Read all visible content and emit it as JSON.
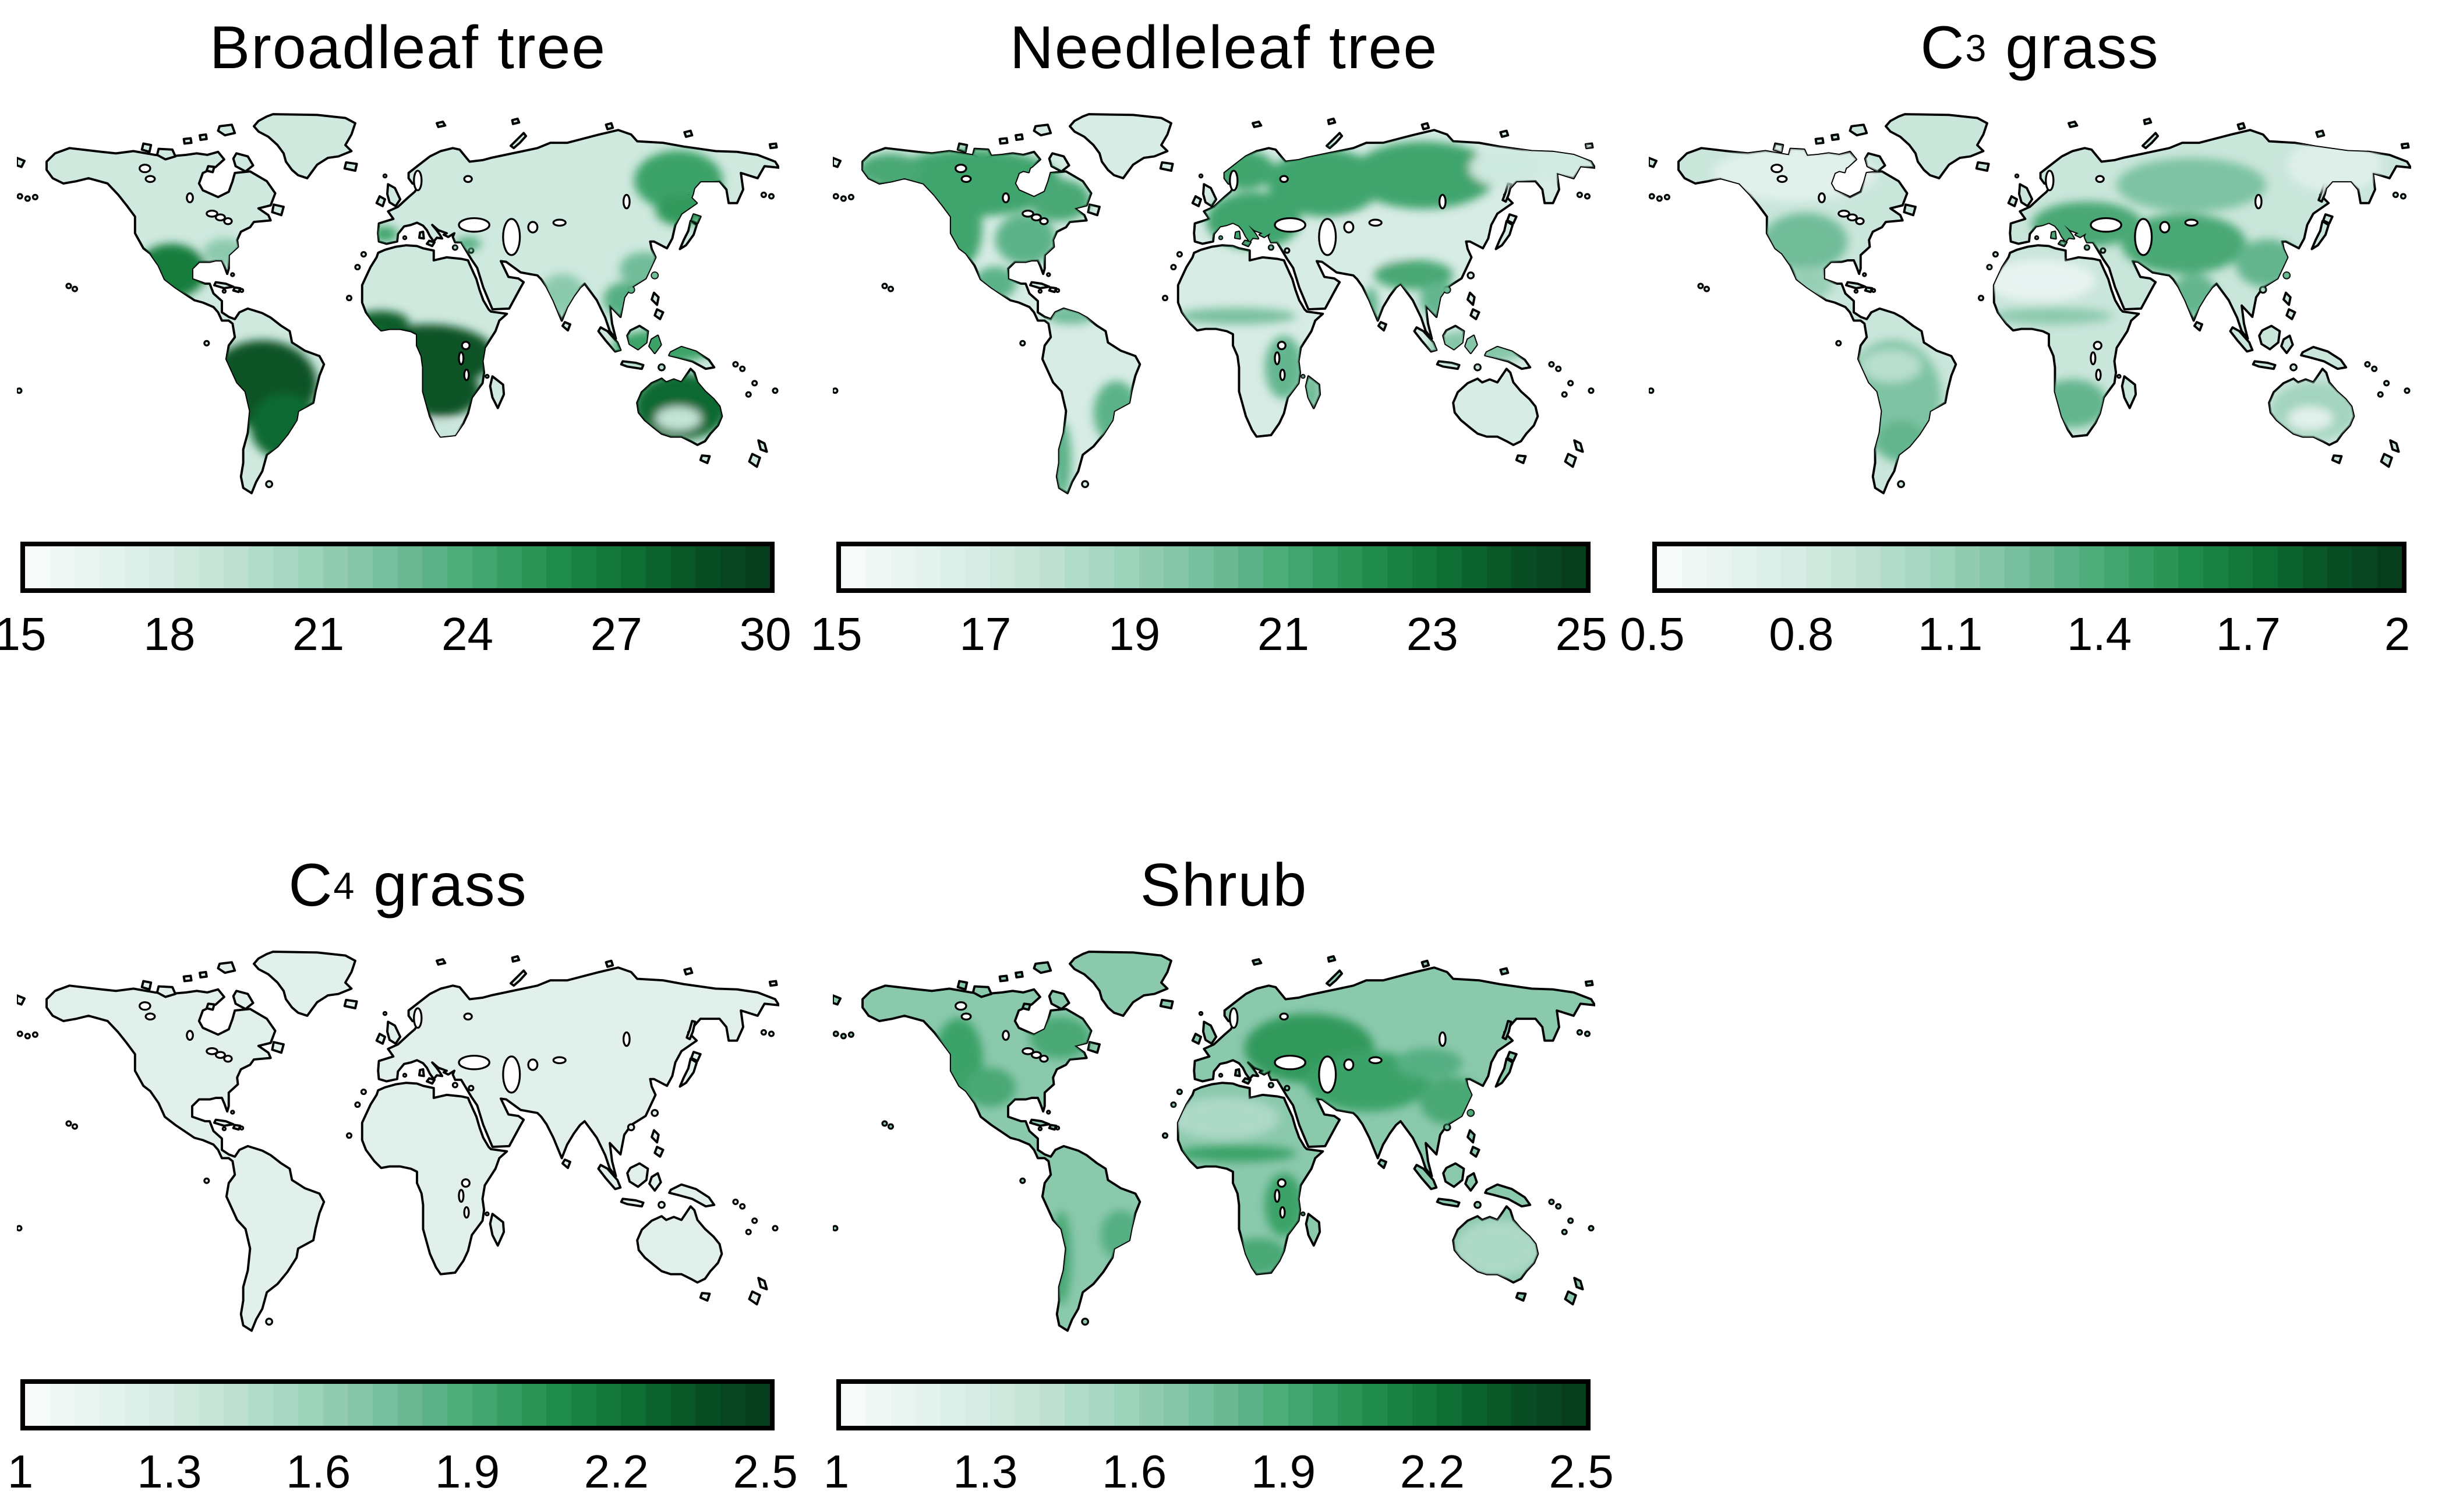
{
  "figure_background": "#ffffff",
  "coastline_color": "#000000",
  "ocean_color": "#ffffff",
  "colormap": [
    "#f9fdfc",
    "#e9f4f1",
    "#d7ece5",
    "#c0e2d4",
    "#a4d5c0",
    "#83c5a7",
    "#5eb38a",
    "#39a167",
    "#1d8947",
    "#0e6e33",
    "#084f24",
    "#063a1b"
  ],
  "chart_data": [
    {
      "type": "map-heatmap",
      "title": "Broadleaf tree",
      "title_parts": {
        "pre": "Broadleaf tree",
        "sub": "",
        "post": ""
      },
      "colorbar": {
        "min": 15,
        "max": 30,
        "ticks": [
          "15",
          "18",
          "21",
          "24",
          "27",
          "30"
        ],
        "segments": 30
      },
      "map": {
        "base_value": 18.2,
        "shaded_regions": [
          {
            "name": "amazon-basin",
            "value": 28.5
          },
          {
            "name": "south-brazil",
            "value": 27.5
          },
          {
            "name": "central-africa",
            "value": 28.5
          },
          {
            "name": "west-africa-coast",
            "value": 28
          },
          {
            "name": "cape-pale",
            "value": 18.5
          },
          {
            "name": "australia-main",
            "value": 27.5
          },
          {
            "name": "australia-interior",
            "value": 19
          },
          {
            "name": "mexico-sw-us",
            "value": 26.5
          },
          {
            "name": "se-us",
            "value": 21.5
          },
          {
            "name": "india",
            "value": 21.5
          },
          {
            "name": "indochina",
            "value": 23.5
          },
          {
            "name": "maritime-se-asia",
            "value": 24.5
          },
          {
            "name": "south-china",
            "value": 22.5
          },
          {
            "name": "east-siberia",
            "value": 24.5
          },
          {
            "name": "amur",
            "value": 25
          },
          {
            "name": "iberia-spot",
            "value": 24.5
          },
          {
            "name": "anatolia-spot",
            "value": 23.5
          }
        ]
      }
    },
    {
      "type": "map-heatmap",
      "title": "Needleleaf tree",
      "title_parts": {
        "pre": "Needleleaf tree",
        "sub": "",
        "post": ""
      },
      "colorbar": {
        "min": 15,
        "max": 25,
        "ticks": [
          "15",
          "17",
          "19",
          "21",
          "23",
          "25"
        ],
        "segments": 30
      },
      "map": {
        "base_value": 16.8,
        "shaded_regions": [
          {
            "name": "boreal-canada",
            "value": 21.2
          },
          {
            "name": "alaska-interior",
            "value": 21
          },
          {
            "name": "west-cordillera",
            "value": 21.2
          },
          {
            "name": "east-canada",
            "value": 21
          },
          {
            "name": "us-east",
            "value": 20.5
          },
          {
            "name": "europe",
            "value": 21.2
          },
          {
            "name": "scandinavia",
            "value": 21.2
          },
          {
            "name": "west-russia",
            "value": 21.2
          },
          {
            "name": "siberia",
            "value": 21.2
          },
          {
            "name": "chukotka-pale",
            "value": 17
          },
          {
            "name": "yakutia-pale",
            "value": 17.2
          },
          {
            "name": "central-asia-pale",
            "value": 16.8
          },
          {
            "name": "mexico-highlands",
            "value": 20.5
          },
          {
            "name": "north-sa-coast",
            "value": 20
          },
          {
            "name": "se-brazil",
            "value": 20.5
          },
          {
            "name": "chile-south",
            "value": 20.5
          },
          {
            "name": "sahel-band",
            "value": 19.8
          },
          {
            "name": "east-africa",
            "value": 20.3
          },
          {
            "name": "madagascar-region",
            "value": 20
          },
          {
            "name": "himalaya",
            "value": 21
          },
          {
            "name": "west-ghats",
            "value": 20.5
          },
          {
            "name": "indochina",
            "value": 20.3
          },
          {
            "name": "maritime-se-asia",
            "value": 19.5
          }
        ]
      }
    },
    {
      "type": "map-heatmap",
      "title": "C3 grass",
      "title_parts": {
        "pre": "C",
        "sub": "3",
        "post": " grass"
      },
      "colorbar": {
        "min": 0.5,
        "max": 2,
        "ticks": [
          "0.5",
          "0.8",
          "1.1",
          "1.4",
          "1.7",
          "2"
        ],
        "segments": 30
      },
      "map": {
        "base_value": 0.85,
        "shaded_regions": [
          {
            "name": "north-canada-pale",
            "value": 0.7
          },
          {
            "name": "ne-siberia-pale",
            "value": 0.72
          },
          {
            "name": "us-plains",
            "value": 1.25
          },
          {
            "name": "mexico-highlands",
            "value": 1.1
          },
          {
            "name": "sa-general",
            "value": 1.2
          },
          {
            "name": "pampas",
            "value": 1.3
          },
          {
            "name": "amazon-pale",
            "value": 0.95
          },
          {
            "name": "europe-steppe",
            "value": 1.4
          },
          {
            "name": "central-asia",
            "value": 1.4
          },
          {
            "name": "siberia-band",
            "value": 1.2
          },
          {
            "name": "china",
            "value": 1.3
          },
          {
            "name": "sahara-pale",
            "value": 0.65
          },
          {
            "name": "sahel-band",
            "value": 1.15
          },
          {
            "name": "southern-africa",
            "value": 1.3
          },
          {
            "name": "india",
            "value": 1.3
          },
          {
            "name": "australia-pale",
            "value": 1.05
          },
          {
            "name": "australia-interior",
            "value": 0.7
          }
        ]
      }
    },
    {
      "type": "map-heatmap",
      "title": "C4 grass",
      "title_parts": {
        "pre": "C",
        "sub": "4",
        "post": " grass"
      },
      "colorbar": {
        "min": 1,
        "max": 2.5,
        "ticks": [
          "1",
          "1.3",
          "1.6",
          "1.9",
          "2.2",
          "2.5"
        ],
        "segments": 30
      },
      "map": {
        "base_value": 1.2,
        "shaded_regions": []
      }
    },
    {
      "type": "map-heatmap",
      "title": "Shrub",
      "title_parts": {
        "pre": "Shrub",
        "sub": "",
        "post": ""
      },
      "colorbar": {
        "min": 1,
        "max": 2.5,
        "ticks": [
          "1",
          "1.3",
          "1.6",
          "1.9",
          "2.2",
          "2.5"
        ],
        "segments": 30
      },
      "map": {
        "base_value": 1.65,
        "shaded_regions": [
          {
            "name": "east-europe-russia",
            "value": 2.0
          },
          {
            "name": "central-asia",
            "value": 1.95
          },
          {
            "name": "west-na",
            "value": 1.95
          },
          {
            "name": "us-interior",
            "value": 1.9
          },
          {
            "name": "east-canada",
            "value": 1.9
          },
          {
            "name": "sahara-pale",
            "value": 1.5
          },
          {
            "name": "sahel-band",
            "value": 1.95
          },
          {
            "name": "east-africa",
            "value": 1.95
          },
          {
            "name": "china",
            "value": 1.9
          },
          {
            "name": "mongolia",
            "value": 1.85
          },
          {
            "name": "australia-pale",
            "value": 1.5
          },
          {
            "name": "south-africa",
            "value": 1.9
          },
          {
            "name": "andes",
            "value": 1.9
          },
          {
            "name": "east-brazil",
            "value": 1.85
          }
        ]
      }
    }
  ]
}
